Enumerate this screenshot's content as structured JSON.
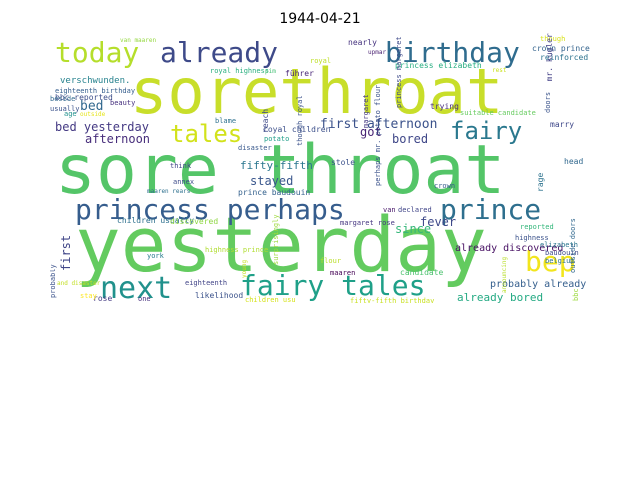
{
  "title": "1944-04-21",
  "words": [
    {
      "text": "sorethroat",
      "color": "#c8de2a"
    },
    {
      "text": "sore throat",
      "color": "#54c568"
    },
    {
      "text": "yesterday",
      "color": "#63cb5f"
    },
    {
      "text": "today",
      "color": "#b5de2b"
    },
    {
      "text": "already",
      "color": "#3e4a89"
    },
    {
      "text": "birthday",
      "color": "#2f6c8e"
    },
    {
      "text": "princess perhaps",
      "color": "#365d8d"
    },
    {
      "text": "prince",
      "color": "#2e6f8e"
    },
    {
      "text": "next",
      "color": "#21918c"
    },
    {
      "text": "fairy tales",
      "color": "#1fa088"
    },
    {
      "text": "bep",
      "color": "#f2e51d"
    },
    {
      "text": "tales",
      "color": "#d2e21b"
    },
    {
      "text": "fairy",
      "color": "#2a788e"
    },
    {
      "text": "bed yesterday",
      "color": "#443983"
    },
    {
      "text": "first afternoon",
      "color": "#3b528b"
    },
    {
      "text": "afternoon",
      "color": "#472d7b"
    },
    {
      "text": "bed",
      "color": "#31688e"
    },
    {
      "text": "got",
      "color": "#482475"
    },
    {
      "text": "bored",
      "color": "#3f4788"
    },
    {
      "text": "stayed",
      "color": "#39568c"
    },
    {
      "text": "since",
      "color": "#35b779"
    },
    {
      "text": "fever",
      "color": "#3e4989"
    },
    {
      "text": "already bored",
      "color": "#24aa83"
    },
    {
      "text": "probably already",
      "color": "#355f8d"
    },
    {
      "text": "first",
      "color": "#404688"
    },
    {
      "text": "fifty-fifth",
      "color": "#2a768e"
    },
    {
      "text": "already discovered",
      "color": "#471063"
    },
    {
      "text": "verschwunden.",
      "color": "#26828e"
    },
    {
      "text": "eighteenth birthday",
      "color": "#355e8d"
    },
    {
      "text": "bbc reported",
      "color": "#3d4e8a"
    },
    {
      "text": "führer",
      "color": "#482677"
    },
    {
      "text": "nearly",
      "color": "#46337f"
    },
    {
      "text": "van maaren",
      "color": "#95d840"
    },
    {
      "text": "though",
      "color": "#d8e219"
    },
    {
      "text": "crown prince",
      "color": "#33638d"
    },
    {
      "text": "reinforced",
      "color": "#2c738e"
    },
    {
      "text": "royal highness",
      "color": "#29af7f"
    },
    {
      "text": "pim",
      "color": "#40bd72"
    },
    {
      "text": "royal",
      "color": "#bddf26"
    },
    {
      "text": "princess elizabeth",
      "color": "#26ad81"
    },
    {
      "text": "upmar",
      "color": "#481f70"
    },
    {
      "text": "rest",
      "color": "#cae11f"
    },
    {
      "text": "beauty",
      "color": "#46307e"
    },
    {
      "text": "beside",
      "color": "#31688e"
    },
    {
      "text": "usually",
      "color": "#3b528b"
    },
    {
      "text": "age",
      "color": "#21918c"
    },
    {
      "text": "outside",
      "color": "#e5e419"
    },
    {
      "text": "blame",
      "color": "#2d718e"
    },
    {
      "text": "royal children",
      "color": "#3c4f8a"
    },
    {
      "text": "potato",
      "color": "#1f9e89"
    },
    {
      "text": "disaster",
      "color": "#38588c"
    },
    {
      "text": "trying",
      "color": "#472f7d"
    },
    {
      "text": "suitable candidate",
      "color": "#65cb5e"
    },
    {
      "text": "marry",
      "color": "#3f4889"
    },
    {
      "text": "head",
      "color": "#31688e"
    },
    {
      "text": "think",
      "color": "#414487"
    },
    {
      "text": "annex",
      "color": "#3e4c8a"
    },
    {
      "text": "maaren rears",
      "color": "#2d708e"
    },
    {
      "text": "prince baudouin",
      "color": "#34618d"
    },
    {
      "text": "stole",
      "color": "#3b518b"
    },
    {
      "text": "van",
      "color": "#481769"
    },
    {
      "text": "declared",
      "color": "#404588"
    },
    {
      "text": "crown",
      "color": "#375b8d"
    },
    {
      "text": "margaret rose",
      "color": "#453581"
    },
    {
      "text": "children usually",
      "color": "#2d708e"
    },
    {
      "text": "discovered",
      "color": "#8fd744"
    },
    {
      "text": "highness prince",
      "color": "#b0dd2f"
    },
    {
      "text": "reported",
      "color": "#32b67a"
    },
    {
      "text": "highness",
      "color": "#3b528b"
    },
    {
      "text": "elizabeth",
      "color": "#2a768e"
    },
    {
      "text": "baudouin",
      "color": "#3e4a89"
    },
    {
      "text": "belgium",
      "color": "#2c728e"
    },
    {
      "text": "york",
      "color": "#287c8e"
    },
    {
      "text": "flour",
      "color": "#bade28"
    },
    {
      "text": "maaren",
      "color": "#440154"
    },
    {
      "text": "candidate",
      "color": "#4ac16d"
    },
    {
      "text": "eighteenth",
      "color": "#414487"
    },
    {
      "text": "likelihood",
      "color": "#3b528b"
    },
    {
      "text": "rose",
      "color": "#443a83"
    },
    {
      "text": "one",
      "color": "#46307e"
    },
    {
      "text": "stay",
      "color": "#fde725"
    },
    {
      "text": "and disaster",
      "color": "#c2df23"
    },
    {
      "text": "children usu",
      "color": "#d5e21a"
    },
    {
      "text": "fifty-fifth birthday",
      "color": "#c8e020"
    },
    {
      "text": "probably",
      "color": "#3b528b"
    },
    {
      "text": "reach",
      "color": "#3e4989"
    },
    {
      "text": "though royal",
      "color": "#3b528b"
    },
    {
      "text": "margaret",
      "color": "#443983"
    },
    {
      "text": "princess margaret",
      "color": "#3e4a89"
    },
    {
      "text": "perhaps mr. potato flour",
      "color": "#3b528b"
    },
    {
      "text": "rage",
      "color": "#2c728e"
    },
    {
      "text": "doors",
      "color": "#3a538b"
    },
    {
      "text": "mr. kugler",
      "color": "#424086"
    },
    {
      "text": "outside doors",
      "color": "#31688e"
    },
    {
      "text": "bbc",
      "color": "#9bd93c"
    },
    {
      "text": "announcing",
      "color": "#b8de29"
    },
    {
      "text": "young",
      "color": "#c5e021"
    },
    {
      "text": "surprisingly",
      "color": "#9dd93b"
    }
  ]
}
